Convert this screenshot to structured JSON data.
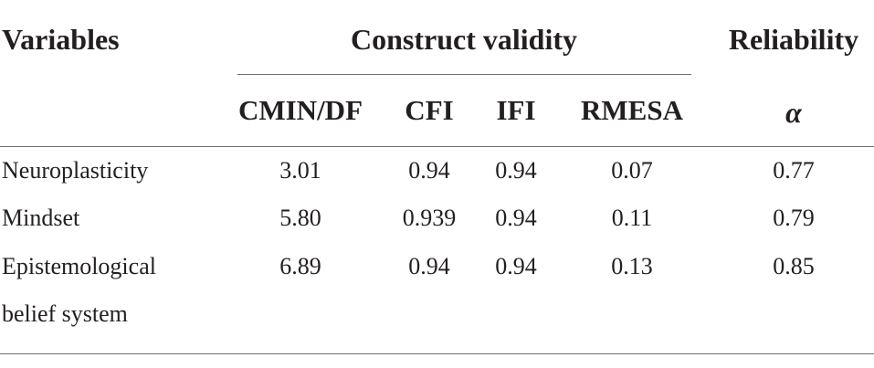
{
  "table": {
    "headers": {
      "variables": "Variables",
      "construct_validity": "Construct validity",
      "reliability": "Reliability"
    },
    "subheaders": {
      "cmin_df": "CMIN/DF",
      "cfi": "CFI",
      "ifi": "IFI",
      "rmesa": "RMESA",
      "alpha": "α"
    },
    "rows": [
      {
        "variable": "Neuroplasticity",
        "variable_line2": "",
        "cmin_df": "3.01",
        "cfi": "0.94",
        "ifi": "0.94",
        "rmesa": "0.07",
        "alpha": "0.77"
      },
      {
        "variable": "Mindset",
        "variable_line2": "",
        "cmin_df": "5.80",
        "cfi": "0.939",
        "ifi": "0.94",
        "rmesa": "0.11",
        "alpha": "0.79"
      },
      {
        "variable": "Epistemological",
        "variable_line2": "belief system",
        "cmin_df": "6.89",
        "cfi": "0.94",
        "ifi": "0.94",
        "rmesa": "0.13",
        "alpha": "0.85"
      }
    ]
  }
}
